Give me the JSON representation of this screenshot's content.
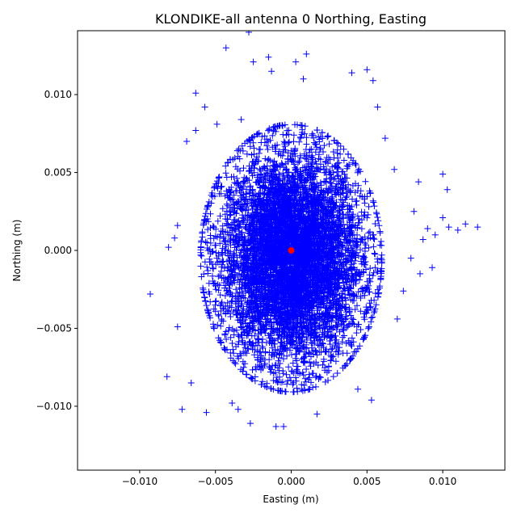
{
  "chart_data": {
    "type": "scatter",
    "title": "KLONDIKE-all antenna 0 Northing, Easting",
    "xlabel": "Easting (m)",
    "ylabel": "Northing (m)",
    "xlim": [
      -0.0141,
      0.0141
    ],
    "ylim": [
      -0.0141,
      0.0141
    ],
    "xticks": [
      -0.01,
      -0.005,
      0.0,
      0.005,
      0.01
    ],
    "xtick_labels": [
      "−0.010",
      "−0.005",
      "0.000",
      "0.005",
      "0.010"
    ],
    "yticks": [
      -0.01,
      -0.005,
      0.0,
      0.005,
      0.01
    ],
    "ytick_labels": [
      "−0.010",
      "−0.005",
      "0.000",
      "0.005",
      "0.010"
    ],
    "grid": false,
    "legend": "none",
    "series": [
      {
        "marker": "plus",
        "color": "#0000ff",
        "distribution": {
          "description_of_cloud": "dense elliptical cloud of several thousand points",
          "center_x": 0.0,
          "center_y": -0.0005,
          "sigma_x": 0.0023,
          "sigma_y": 0.0033,
          "count": 7000
        },
        "outliers": [
          [
            -0.0093,
            -0.0028
          ],
          [
            -0.0082,
            -0.0081
          ],
          [
            -0.0081,
            0.0002
          ],
          [
            -0.0077,
            0.0008
          ],
          [
            -0.0075,
            0.0016
          ],
          [
            -0.0075,
            -0.0049
          ],
          [
            -0.0072,
            -0.0102
          ],
          [
            -0.0069,
            0.007
          ],
          [
            -0.0066,
            -0.0085
          ],
          [
            -0.0063,
            0.0077
          ],
          [
            -0.0063,
            0.0101
          ],
          [
            -0.0057,
            0.0092
          ],
          [
            -0.0056,
            -0.0104
          ],
          [
            -0.0049,
            0.0081
          ],
          [
            -0.0043,
            0.013
          ],
          [
            -0.0039,
            -0.0098
          ],
          [
            -0.0035,
            -0.0102
          ],
          [
            -0.0033,
            0.0084
          ],
          [
            -0.0028,
            0.014
          ],
          [
            -0.0027,
            -0.0111
          ],
          [
            -0.0025,
            0.0121
          ],
          [
            -0.0015,
            0.0124
          ],
          [
            -0.0013,
            0.0115
          ],
          [
            -0.001,
            -0.0113
          ],
          [
            -0.0005,
            -0.0113
          ],
          [
            0.0003,
            0.0121
          ],
          [
            0.001,
            0.0126
          ],
          [
            0.0008,
            0.011
          ],
          [
            0.0017,
            -0.0105
          ],
          [
            0.004,
            0.0114
          ],
          [
            0.0044,
            -0.0089
          ],
          [
            0.005,
            0.0116
          ],
          [
            0.0053,
            -0.0096
          ],
          [
            0.0054,
            0.0109
          ],
          [
            0.0057,
            0.0092
          ],
          [
            0.0062,
            0.0072
          ],
          [
            0.0068,
            0.0052
          ],
          [
            0.007,
            -0.0044
          ],
          [
            0.0074,
            -0.0026
          ],
          [
            0.0079,
            -0.0005
          ],
          [
            0.0081,
            0.0025
          ],
          [
            0.0084,
            0.0044
          ],
          [
            0.0085,
            -0.0015
          ],
          [
            0.0087,
            0.0007
          ],
          [
            0.009,
            0.0014
          ],
          [
            0.0093,
            -0.0011
          ],
          [
            0.0095,
            0.001
          ],
          [
            0.01,
            0.0049
          ],
          [
            0.01,
            0.0021
          ],
          [
            0.0103,
            0.0039
          ],
          [
            0.0104,
            0.0015
          ],
          [
            0.011,
            0.0013
          ],
          [
            0.0115,
            0.0017
          ],
          [
            0.0123,
            0.0015
          ]
        ]
      },
      {
        "marker": "circle",
        "color": "#ff0000",
        "points": [
          [
            0.0,
            0.0
          ]
        ]
      }
    ]
  }
}
